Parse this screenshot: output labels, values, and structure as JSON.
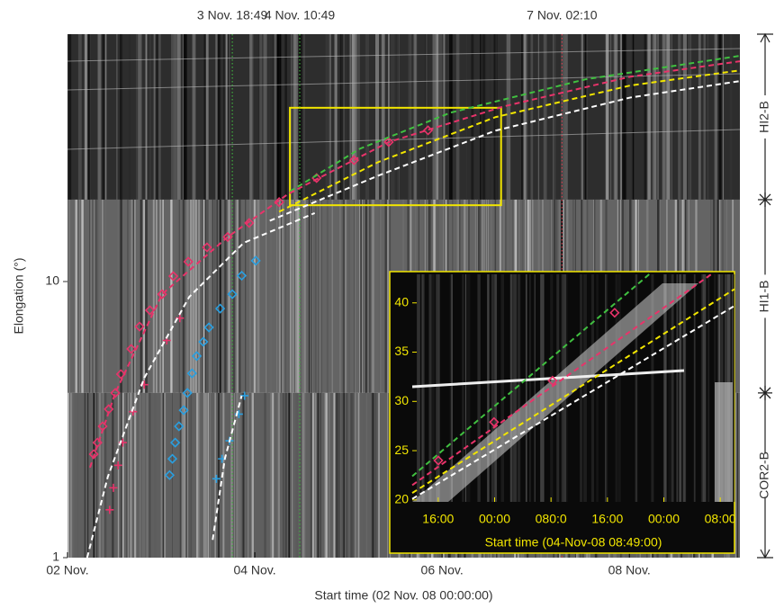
{
  "chart_data": [
    {
      "type": "scatter",
      "xlabel": "Start time (02 Nov. 08 00:00:00)",
      "ylabel": "Elongation (°)",
      "xlim": [
        0,
        7.18
      ],
      "ylim": [
        1,
        78.7
      ],
      "log_y": true,
      "xticks": [
        {
          "value": 0,
          "label": "02 Nov."
        },
        {
          "value": 2,
          "label": "04 Nov."
        },
        {
          "value": 4,
          "label": "06 Nov."
        },
        {
          "value": 6,
          "label": "08 Nov."
        }
      ],
      "yticks": [
        1,
        10
      ],
      "time_markers": [
        {
          "value": 1.76,
          "label": "3 Nov.  18:49",
          "color": "#3fae3f"
        },
        {
          "value": 2.48,
          "label": "4 Nov.  10:49",
          "color": "#3fae3f"
        },
        {
          "value": 5.28,
          "label": "7 Nov.  02:10",
          "color": "#d23c4c"
        }
      ],
      "instruments": [
        {
          "name": "HI2-B",
          "range": [
            19.8,
            78.7
          ]
        },
        {
          "name": "HI1-B",
          "range": [
            3.95,
            19.8
          ]
        },
        {
          "name": "COR2-B",
          "range": [
            1,
            3.95
          ]
        }
      ],
      "zoom_box": {
        "xlim": [
          2.375,
          4.63
        ],
        "ylim": [
          18.9,
          42.6
        ],
        "color": "#f2e600"
      },
      "series": [
        {
          "marker": "diamond",
          "color": "#e8336a",
          "x": [
            0.28,
            0.32,
            0.375,
            0.44,
            0.51,
            0.57,
            0.68,
            0.77,
            0.88,
            1.01,
            1.13,
            1.29,
            1.49,
            1.71,
            1.94,
            2.26,
            2.66,
            3.06,
            3.43,
            3.85
          ],
          "values": [
            2.37,
            2.61,
            2.99,
            3.45,
            3.95,
            4.62,
            5.7,
            6.87,
            7.87,
            9.0,
            10.46,
            11.8,
            13.3,
            14.5,
            16.3,
            19.4,
            23.7,
            27.5,
            32.0,
            35.3
          ]
        },
        {
          "marker": "diamond",
          "color": "#2a9fe0",
          "x": [
            1.09,
            1.12,
            1.15,
            1.19,
            1.24,
            1.28,
            1.33,
            1.38,
            1.45,
            1.51,
            1.63,
            1.76,
            1.86,
            2.01
          ],
          "values": [
            1.99,
            2.28,
            2.61,
            2.99,
            3.42,
            3.95,
            4.65,
            5.37,
            6.05,
            6.82,
            7.98,
            9.0,
            10.5,
            11.9
          ]
        },
        {
          "marker": "cross",
          "color": "#e8336a",
          "x": [
            0.45,
            0.49,
            0.54,
            0.59,
            0.7,
            0.82,
            1.06,
            1.2
          ],
          "values": [
            1.49,
            1.79,
            2.16,
            2.61,
            3.38,
            4.23,
            6.12,
            7.37
          ]
        },
        {
          "marker": "cross",
          "color": "#2a9fe0",
          "x": [
            1.59,
            1.65,
            1.73,
            1.83,
            1.89
          ],
          "values": [
            1.93,
            2.28,
            2.65,
            3.31,
            3.86
          ]
        },
        {
          "marker": "dashed",
          "color": "#40c040",
          "x": [
            2.375,
            3.125,
            4.09,
            5.53,
            7.18
          ],
          "values": [
            21.2,
            30.3,
            40.9,
            54.0,
            65.7
          ]
        },
        {
          "marker": "dashed",
          "color": "#e8336a",
          "x": [
            0.24,
            0.51,
            1.01,
            1.71,
            2.36,
            3.43,
            4.66,
            6.01,
            7.18
          ],
          "values": [
            2.12,
            3.95,
            9.0,
            14.5,
            20.8,
            32.0,
            43.1,
            55.2,
            62.8
          ]
        },
        {
          "marker": "dashed",
          "color": "#f2e600",
          "x": [
            2.26,
            3.32,
            4.57,
            6.01,
            7.18
          ],
          "values": [
            17.9,
            27.1,
            39.4,
            51.3,
            58.2
          ]
        },
        {
          "marker": "dashed",
          "color": "#ffffff",
          "x": [
            2.16,
            3.32,
            4.57,
            6.01,
            7.18
          ],
          "values": [
            16.6,
            24.2,
            35.2,
            46.4,
            53.2
          ]
        },
        {
          "marker": "dashed",
          "color": "#ffffff",
          "x": [
            0.21,
            0.43,
            0.82,
            1.3,
            1.88,
            2.64
          ],
          "values": [
            1.0,
            1.96,
            4.48,
            8.8,
            13.8,
            17.7
          ]
        },
        {
          "marker": "dashed",
          "color": "#ffffff",
          "x": [
            1.55,
            1.68,
            1.86
          ],
          "values": [
            1.16,
            2.28,
            3.86
          ]
        }
      ]
    },
    {
      "type": "scatter",
      "xlabel": "Start time (04-Nov-08  08:49:00)",
      "xlim": [
        3.5,
        49.2
      ],
      "ylim": [
        19.8,
        42.9
      ],
      "xticks": [
        {
          "value": 7.18,
          "label": "16:00"
        },
        {
          "value": 15.18,
          "label": "00:00"
        },
        {
          "value": 23.18,
          "label": "080:0"
        },
        {
          "value": 31.18,
          "label": "16:00"
        },
        {
          "value": 39.18,
          "label": "00:00"
        },
        {
          "value": 47.18,
          "label": "08:00"
        }
      ],
      "yticks": [
        20,
        25,
        30,
        35,
        40
      ],
      "axis_color": "#f2e600",
      "series": [
        {
          "marker": "diamond",
          "color": "#e8336a",
          "x": [
            7.2,
            15.1,
            23.4,
            32.2
          ],
          "values": [
            24.0,
            27.9,
            32.1,
            39.0
          ]
        },
        {
          "marker": "dashed",
          "color": "#40c040",
          "x": [
            3.5,
            37.1
          ],
          "values": [
            22.4,
            42.9
          ]
        },
        {
          "marker": "dashed",
          "color": "#e8336a",
          "x": [
            3.5,
            45.9
          ],
          "values": [
            21.5,
            42.9
          ]
        },
        {
          "marker": "dashed",
          "color": "#f2e600",
          "x": [
            3.5,
            49.2
          ],
          "values": [
            20.7,
            41.4
          ]
        },
        {
          "marker": "dashed",
          "color": "#ffffff",
          "x": [
            3.5,
            49.2
          ],
          "values": [
            20.1,
            39.7
          ]
        }
      ]
    }
  ]
}
